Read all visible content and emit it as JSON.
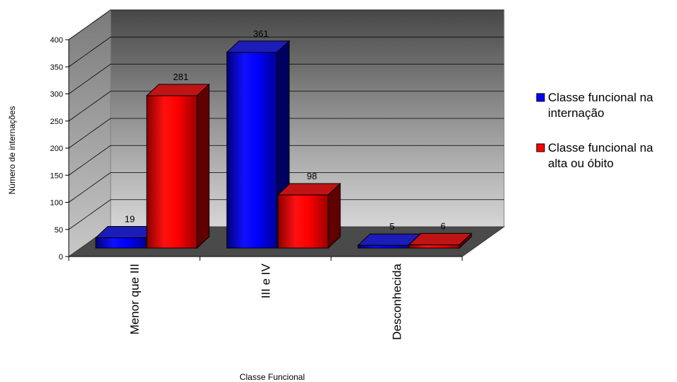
{
  "chart_data": {
    "type": "bar",
    "categories": [
      "Menor que III",
      "III e IV",
      "Desconhecida"
    ],
    "series": [
      {
        "name": "Classe funcional na internação",
        "values": [
          19,
          361,
          5
        ],
        "color": "#0000ff"
      },
      {
        "name": "Classe funcional na alta ou óbito",
        "values": [
          281,
          98,
          6
        ],
        "color": "#ff0000"
      }
    ],
    "legend_lines": [
      [
        "Classe funcional na",
        "internação"
      ],
      [
        "Classe funcional na",
        "alta ou óbito"
      ]
    ],
    "xlabel": "Classe Funcional",
    "ylabel": "Número de internações",
    "ylim": [
      0,
      400
    ],
    "yticks": [
      0,
      50,
      100,
      150,
      200,
      250,
      300,
      350,
      400
    ],
    "grid": true,
    "legend": "right",
    "three_d": true
  }
}
